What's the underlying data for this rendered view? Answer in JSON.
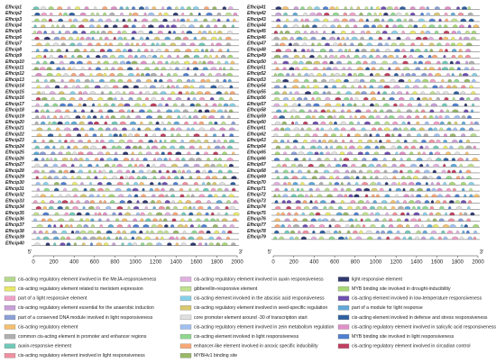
{
  "chart_data": [
    {
      "type": "promoter-map",
      "five_prime_label": "5'",
      "three_prime_label": "3'",
      "genes": [
        "Efhcip1",
        "Efhcip2",
        "Efhcip3",
        "Efhcip4",
        "Efhcip5",
        "Efhcip6",
        "Efhcip7",
        "Efhcip8",
        "Efhcip9",
        "Efhcip10",
        "Efhcip11",
        "Efhcip12",
        "Efhcip13",
        "Efhcip14",
        "Efhcip15",
        "Efhcip16",
        "Efhcip17",
        "Efhcip18",
        "Efhcip19",
        "Efhcip20",
        "Efhcip21",
        "Efhcip22",
        "Efhcip23",
        "Efhcip24",
        "Efhcip25",
        "Efhcip26",
        "Efhcip27",
        "Efhcip28",
        "Efhcip29",
        "Efhcip30",
        "Efhcip31",
        "Efhcip32",
        "Efhcip33",
        "Efhcip34",
        "Efhcip35",
        "Efhcip36",
        "Efhcip37",
        "Efhcip38",
        "Efhcip39",
        "Efhcip40"
      ],
      "xlim": [
        0,
        2000
      ],
      "xticks": [
        0,
        200,
        400,
        600,
        800,
        1000,
        1200,
        1400,
        1600,
        1800,
        2000
      ]
    },
    {
      "type": "promoter-map",
      "five_prime_label": "5'",
      "three_prime_label": "3'",
      "genes": [
        "Efhcip41",
        "Efhcip42",
        "Efhcip43",
        "Efhcip44",
        "Efhcip45",
        "Efhcip46",
        "Efhcip47",
        "Efhcip48",
        "Efhcip49",
        "Efhcip50",
        "Efhcip51",
        "Efhcip52",
        "Efhcip53",
        "Efhcip54",
        "Efhcip55",
        "Efhcip56",
        "Efhcip57",
        "Efhcip58",
        "Efhcip59",
        "Efhcip60",
        "Efhcip61",
        "Efhcip62",
        "Efhcip63",
        "Efhcip64",
        "Efhcip65",
        "Efhcip66",
        "Efhcip67",
        "Efhcip68",
        "Efhcip69",
        "Efhcip70",
        "Efhcip71",
        "Efhcip72",
        "Efhcip73",
        "Efhcip74",
        "Efhcip75",
        "Efhcip76",
        "Efhcip77",
        "Efhcip78",
        "Efhcip79"
      ],
      "xlim": [
        0,
        2000
      ],
      "xticks": [
        0,
        200,
        400,
        600,
        800,
        1000,
        1200,
        1400,
        1600,
        1800,
        2000
      ]
    }
  ],
  "legend": {
    "columns": [
      [
        {
          "label": "cis-acting regulatory element involved in the MeJA-responsiveness",
          "color": "#b5d98c"
        },
        {
          "label": "cis-acting regulatory element related to meristem expression",
          "color": "#e8e86a"
        },
        {
          "label": "part of a light responsive element",
          "color": "#f0a0c8"
        },
        {
          "label": "cis-acting regulatory element essential for the anaerobic induction",
          "color": "#c8a0d8"
        },
        {
          "label": "part of a conserved DNA module involved in light responsiveness",
          "color": "#8ca0d8"
        },
        {
          "label": "cis-acting regulatory element",
          "color": "#f4c070"
        },
        {
          "label": "common cis-acting element in promoter and enhancer regions",
          "color": "#b0b0b0"
        },
        {
          "label": "auxin-responsive element",
          "color": "#70c8b8"
        },
        {
          "label": "cis-acting regulatory element involved in light responsiveness",
          "color": "#f090a0"
        }
      ],
      [
        {
          "label": "cis-acting regulatory element involved in auxin responsiveness",
          "color": "#e0b0e0"
        },
        {
          "label": "gibberellin-responsive element",
          "color": "#c0e090"
        },
        {
          "label": "cis-acting element involved in the abscisic acid responsiveness",
          "color": "#88d0e8"
        },
        {
          "label": "cis-acting regulatory element involved in seed-specific regulation",
          "color": "#d8c870"
        },
        {
          "label": "core promoter element around -30 of transcription start",
          "color": "#e0e0e0"
        },
        {
          "label": "cis-acting regulatory element involved in zein metabolism regulation",
          "color": "#a0c0f0"
        },
        {
          "label": "cis-acting element involved in light responsiveness",
          "color": "#90d890"
        },
        {
          "label": "enhancer-like element involved in anoxic specific inducibility",
          "color": "#f8a878"
        },
        {
          "label": "MYBHv1 binding site",
          "color": "#98b868"
        }
      ],
      [
        {
          "label": "light responsive element",
          "color": "#303870"
        },
        {
          "label": "MYB binding site involved in drought-inducibility",
          "color": "#a8d878"
        },
        {
          "label": "cis-acting element involved in low-temperature responsiveness",
          "color": "#7050b0"
        },
        {
          "label": "part of a module for light response",
          "color": "#60a8d8"
        },
        {
          "label": "cis-acting element involved in defense and stress responsiveness",
          "color": "#3060a0"
        },
        {
          "label": "cis-acting regulatory element involved in salicylic acid responsiveness",
          "color": "#e090c8"
        },
        {
          "label": "MYB binding site involved in light responsiveness",
          "color": "#5080d0"
        },
        {
          "label": "cis-acting regulatory element involved in circadian control",
          "color": "#c04060"
        }
      ]
    ]
  }
}
